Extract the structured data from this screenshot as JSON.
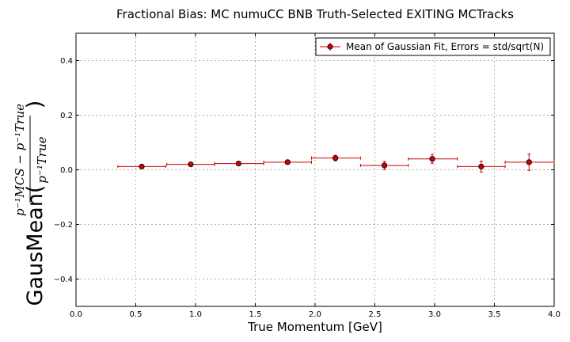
{
  "chart_data": {
    "type": "scatter",
    "title": "Fractional Bias: MC numuCC BNB Truth-Selected EXITING MCTracks",
    "xlabel": "True Momentum [GeV]",
    "ylabel": "GausMean(",
    "ylabel_fraction": {
      "numerator": "p⁻¹MCS − p⁻¹True",
      "denominator": "p⁻¹True"
    },
    "xlim": [
      0.0,
      4.0
    ],
    "ylim": [
      -0.5,
      0.5
    ],
    "xticks": [
      "0.0",
      "0.5",
      "1.0",
      "1.5",
      "2.0",
      "2.5",
      "3.0",
      "3.5",
      "4.0"
    ],
    "yticks": [
      "−0.4",
      "−0.2",
      "0.0",
      "0.2",
      "0.4"
    ],
    "grid": true,
    "legend_position": "top-right",
    "series": [
      {
        "name": "Mean of Gaussian Fit, Errors = std/sqrt(N)",
        "color": "#cc0000",
        "points": [
          {
            "x": 0.55,
            "y": 0.012,
            "xlo": 0.35,
            "xhi": 0.75,
            "yerr": 0.004
          },
          {
            "x": 0.96,
            "y": 0.02,
            "xlo": 0.76,
            "xhi": 1.16,
            "yerr": 0.004
          },
          {
            "x": 1.36,
            "y": 0.023,
            "xlo": 1.16,
            "xhi": 1.57,
            "yerr": 0.004
          },
          {
            "x": 1.77,
            "y": 0.028,
            "xlo": 1.57,
            "xhi": 1.97,
            "yerr": 0.005
          },
          {
            "x": 2.17,
            "y": 0.043,
            "xlo": 1.97,
            "xhi": 2.38,
            "yerr": 0.01
          },
          {
            "x": 2.58,
            "y": 0.016,
            "xlo": 2.38,
            "xhi": 2.78,
            "yerr": 0.015
          },
          {
            "x": 2.98,
            "y": 0.04,
            "xlo": 2.78,
            "xhi": 3.19,
            "yerr": 0.016
          },
          {
            "x": 3.39,
            "y": 0.012,
            "xlo": 3.19,
            "xhi": 3.59,
            "yerr": 0.02
          },
          {
            "x": 3.79,
            "y": 0.028,
            "xlo": 3.59,
            "xhi": 4.0,
            "yerr": 0.03
          }
        ]
      }
    ]
  }
}
